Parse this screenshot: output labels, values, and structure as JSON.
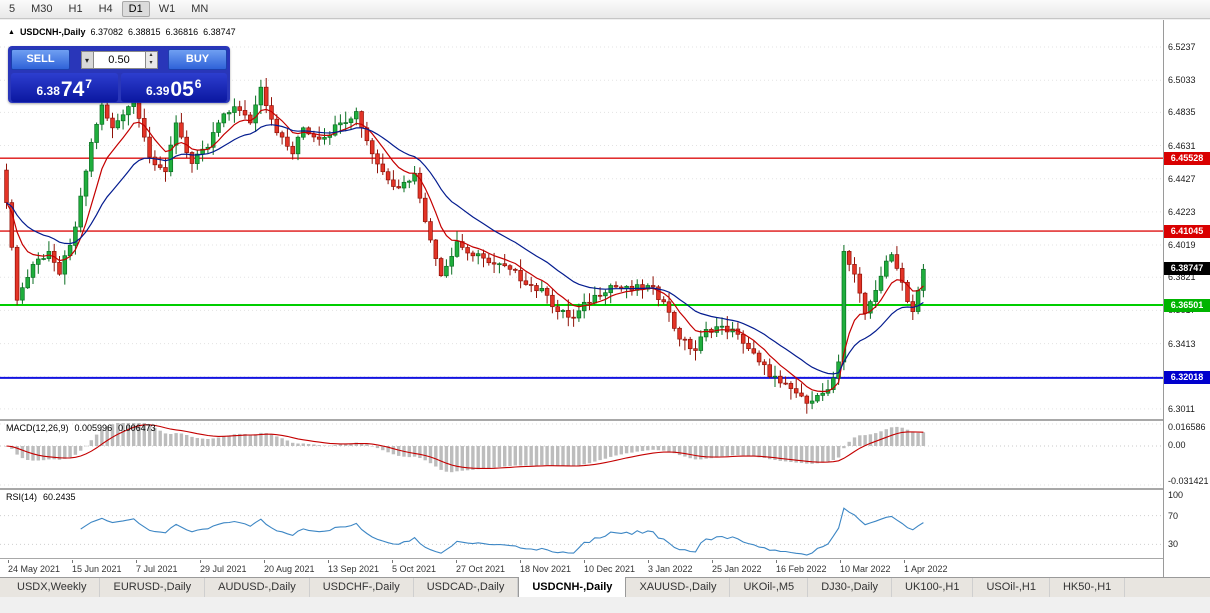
{
  "toolbar": {
    "timeframes": [
      "5",
      "M30",
      "H1",
      "H4",
      "D1",
      "W1",
      "MN"
    ],
    "active": "D1"
  },
  "chart": {
    "title": {
      "symbol": "USDCNH-,Daily",
      "open": "6.37082",
      "high": "6.38815",
      "low": "6.36816",
      "close": "6.38747"
    },
    "trade_panel": {
      "sell_label": "SELL",
      "buy_label": "BUY",
      "lot_value": "0.50",
      "sell_price": {
        "small": "6.38",
        "big": "74",
        "sup": "7"
      },
      "buy_price": {
        "small": "6.39",
        "big": "05",
        "sup": "6"
      }
    },
    "price_axis": {
      "labels": [
        "6.5237",
        "6.5033",
        "6.4835",
        "6.4631",
        "6.4427",
        "6.4223",
        "6.4019",
        "6.3821",
        "6.3617",
        "6.3413",
        "6.3209",
        "6.3011"
      ]
    },
    "levels": [
      {
        "label": "6.45528",
        "value": 6.45528,
        "color": "#dd1111",
        "badge": "#d90000",
        "width": 1.4
      },
      {
        "label": "6.41045",
        "value": 6.41045,
        "color": "#dd1111",
        "badge": "#d90000",
        "width": 1.4
      },
      {
        "label": "6.36501",
        "value": 6.36501,
        "color": "#00ce00",
        "badge": "#00b400",
        "width": 2
      },
      {
        "label": "6.32018",
        "value": 6.32018,
        "color": "#1414e0",
        "badge": "#0000cd",
        "width": 2
      }
    ],
    "current_price": {
      "label": "6.38747",
      "value": 6.38747,
      "badge": "#000000"
    },
    "view": {
      "price_top": 6.5403,
      "price_bottom": 6.2949
    },
    "candles": {
      "count": 174,
      "up_color": "#1fae3d",
      "up_border": "#0a6e22",
      "down_color": "#e33427",
      "down_border": "#901208",
      "keyframes": [
        [
          0,
          6.428
        ],
        [
          2,
          6.368
        ],
        [
          5,
          6.39
        ],
        [
          8,
          6.398
        ],
        [
          10,
          6.384
        ],
        [
          13,
          6.413
        ],
        [
          16,
          6.465
        ],
        [
          18,
          6.488
        ],
        [
          20,
          6.474
        ],
        [
          22,
          6.482
        ],
        [
          24,
          6.493
        ],
        [
          27,
          6.456
        ],
        [
          30,
          6.447
        ],
        [
          32,
          6.477
        ],
        [
          35,
          6.452
        ],
        [
          38,
          6.462
        ],
        [
          40,
          6.477
        ],
        [
          43,
          6.487
        ],
        [
          46,
          6.477
        ],
        [
          48,
          6.499
        ],
        [
          51,
          6.471
        ],
        [
          54,
          6.458
        ],
        [
          56,
          6.474
        ],
        [
          59,
          6.467
        ],
        [
          63,
          6.477
        ],
        [
          66,
          6.484
        ],
        [
          69,
          6.458
        ],
        [
          71,
          6.447
        ],
        [
          74,
          6.437
        ],
        [
          77,
          6.446
        ],
        [
          80,
          6.405
        ],
        [
          82,
          6.383
        ],
        [
          85,
          6.404
        ],
        [
          87,
          6.397
        ],
        [
          91,
          6.391
        ],
        [
          95,
          6.387
        ],
        [
          99,
          6.377
        ],
        [
          102,
          6.371
        ],
        [
          104,
          6.361
        ],
        [
          107,
          6.357
        ],
        [
          111,
          6.371
        ],
        [
          114,
          6.377
        ],
        [
          118,
          6.374
        ],
        [
          121,
          6.377
        ],
        [
          124,
          6.367
        ],
        [
          127,
          6.344
        ],
        [
          130,
          6.337
        ],
        [
          132,
          6.35
        ],
        [
          135,
          6.352
        ],
        [
          138,
          6.347
        ],
        [
          142,
          6.33
        ],
        [
          146,
          6.317
        ],
        [
          150,
          6.309
        ],
        [
          152,
          6.306
        ],
        [
          155,
          6.313
        ],
        [
          156,
          6.32
        ],
        [
          157,
          6.33
        ],
        [
          158,
          6.398
        ],
        [
          160,
          6.384
        ],
        [
          162,
          6.36
        ],
        [
          164,
          6.374
        ],
        [
          166,
          6.392
        ],
        [
          167,
          6.396
        ],
        [
          169,
          6.379
        ],
        [
          171,
          6.361
        ],
        [
          172,
          6.374
        ],
        [
          173,
          6.387
        ]
      ]
    },
    "moving_averages": [
      {
        "period": 8,
        "color": "#c40000"
      },
      {
        "period": 21,
        "color": "#041c8f"
      }
    ]
  },
  "macd": {
    "name": "MACD",
    "params": "(12,26,9)",
    "value1": "0.005996",
    "value2": "0.006473",
    "scale_top": "0.016586",
    "scale_zero": "0.00",
    "scale_bottom": "-0.031421",
    "hist_color": "#bdbdbd",
    "signal_color": "#c40000"
  },
  "rsi": {
    "name": "RSI",
    "params": "(14)",
    "value": "60.2435",
    "scale": [
      "100",
      "70",
      "30"
    ],
    "line_color": "#3c86c4"
  },
  "dates": [
    "24 May 2021",
    "15 Jun 2021",
    "7 Jul 2021",
    "29 Jul 2021",
    "20 Aug 2021",
    "13 Sep 2021",
    "5 Oct 2021",
    "27 Oct 2021",
    "18 Nov 2021",
    "10 Dec 2021",
    "3 Jan 2022",
    "25 Jan 2022",
    "16 Feb 2022",
    "10 Mar 2022",
    "1 Apr 2022"
  ],
  "tabs": {
    "items": [
      "USDX,Weekly",
      "EURUSD-,Daily",
      "AUDUSD-,Daily",
      "USDCHF-,Daily",
      "USDCAD-,Daily",
      "USDCNH-,Daily",
      "XAUUSD-,Daily",
      "UKOil-,M5",
      "DJ30-,Daily",
      "UK100-,H1",
      "USOil-,H1",
      "HK50-,H1"
    ],
    "active": "USDCNH-,Daily"
  }
}
